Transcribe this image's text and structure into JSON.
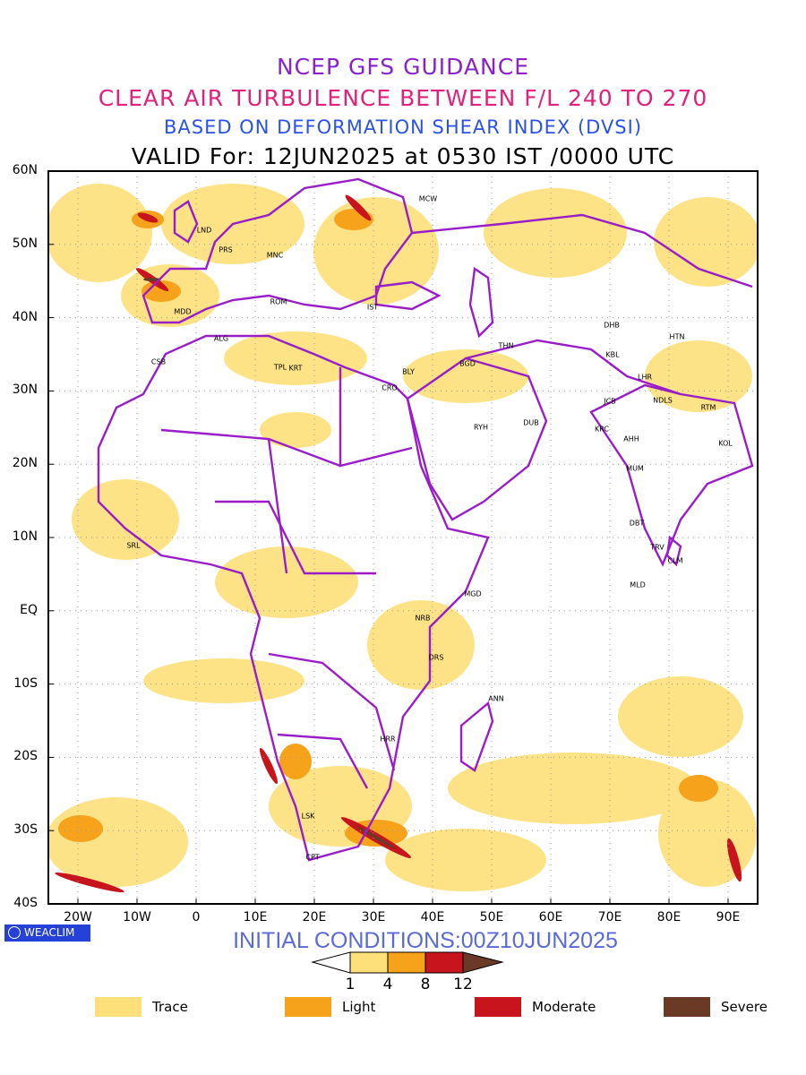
{
  "titles": {
    "line1": "NCEP GFS GUIDANCE",
    "line2": "CLEAR AIR TURBULENCE BETWEEN F/L 240 TO 270",
    "line3": "BASED ON DEFORMATION SHEAR INDEX (DVSI)",
    "line4": "VALID For: 12JUN2025 at 0530 IST /0000 UTC"
  },
  "colors": {
    "line1": "#8a22c8",
    "line2": "#e0227a",
    "line3": "#2a52e8",
    "line4": "#000000",
    "borders": "#9a1ec8",
    "trace": "#fde07a",
    "light": "#f7a21b",
    "moderate": "#c8141c",
    "severe": "#6b3a26"
  },
  "map": {
    "lat_labels": [
      "60N",
      "50N",
      "40N",
      "30N",
      "20N",
      "10N",
      "EQ",
      "10S",
      "20S",
      "30S",
      "40S"
    ],
    "lon_labels": [
      "20W",
      "10W",
      "0",
      "10E",
      "20E",
      "30E",
      "40E",
      "50E",
      "60E",
      "70E",
      "80E",
      "90E"
    ],
    "stations": [
      {
        "code": "MCW"
      },
      {
        "code": "LND"
      },
      {
        "code": "PRS"
      },
      {
        "code": "MNC"
      },
      {
        "code": "ROM"
      },
      {
        "code": "IST"
      },
      {
        "code": "MDD"
      },
      {
        "code": "ALG"
      },
      {
        "code": "CSB"
      },
      {
        "code": "TPL"
      },
      {
        "code": "KRT"
      },
      {
        "code": "BLY"
      },
      {
        "code": "CRO"
      },
      {
        "code": "BGD"
      },
      {
        "code": "THN"
      },
      {
        "code": "DHB"
      },
      {
        "code": "HTN"
      },
      {
        "code": "KBL"
      },
      {
        "code": "LHR"
      },
      {
        "code": "JCB"
      },
      {
        "code": "NDLS"
      },
      {
        "code": "RTM"
      },
      {
        "code": "KRC"
      },
      {
        "code": "AHH"
      },
      {
        "code": "DUB"
      },
      {
        "code": "RYH"
      },
      {
        "code": "KOL"
      },
      {
        "code": "MUM"
      },
      {
        "code": "DBT"
      },
      {
        "code": "TRV"
      },
      {
        "code": "CLM"
      },
      {
        "code": "MLD"
      },
      {
        "code": "SRL"
      },
      {
        "code": "MGD"
      },
      {
        "code": "NRB"
      },
      {
        "code": "DRS"
      },
      {
        "code": "ANN"
      },
      {
        "code": "HRR"
      },
      {
        "code": "LSK"
      },
      {
        "code": "CPT"
      }
    ]
  },
  "footer": {
    "brand": "WEACLIM",
    "initial_conditions": "INITIAL CONDITIONS:00Z10JUN2025",
    "colorbar_ticks": [
      "1",
      "4",
      "8",
      "12"
    ],
    "legend": [
      {
        "label": "Trace",
        "color": "#fde07a"
      },
      {
        "label": "Light",
        "color": "#f7a21b"
      },
      {
        "label": "Moderate",
        "color": "#c8141c"
      },
      {
        "label": "Severe",
        "color": "#6b3a26"
      }
    ]
  }
}
